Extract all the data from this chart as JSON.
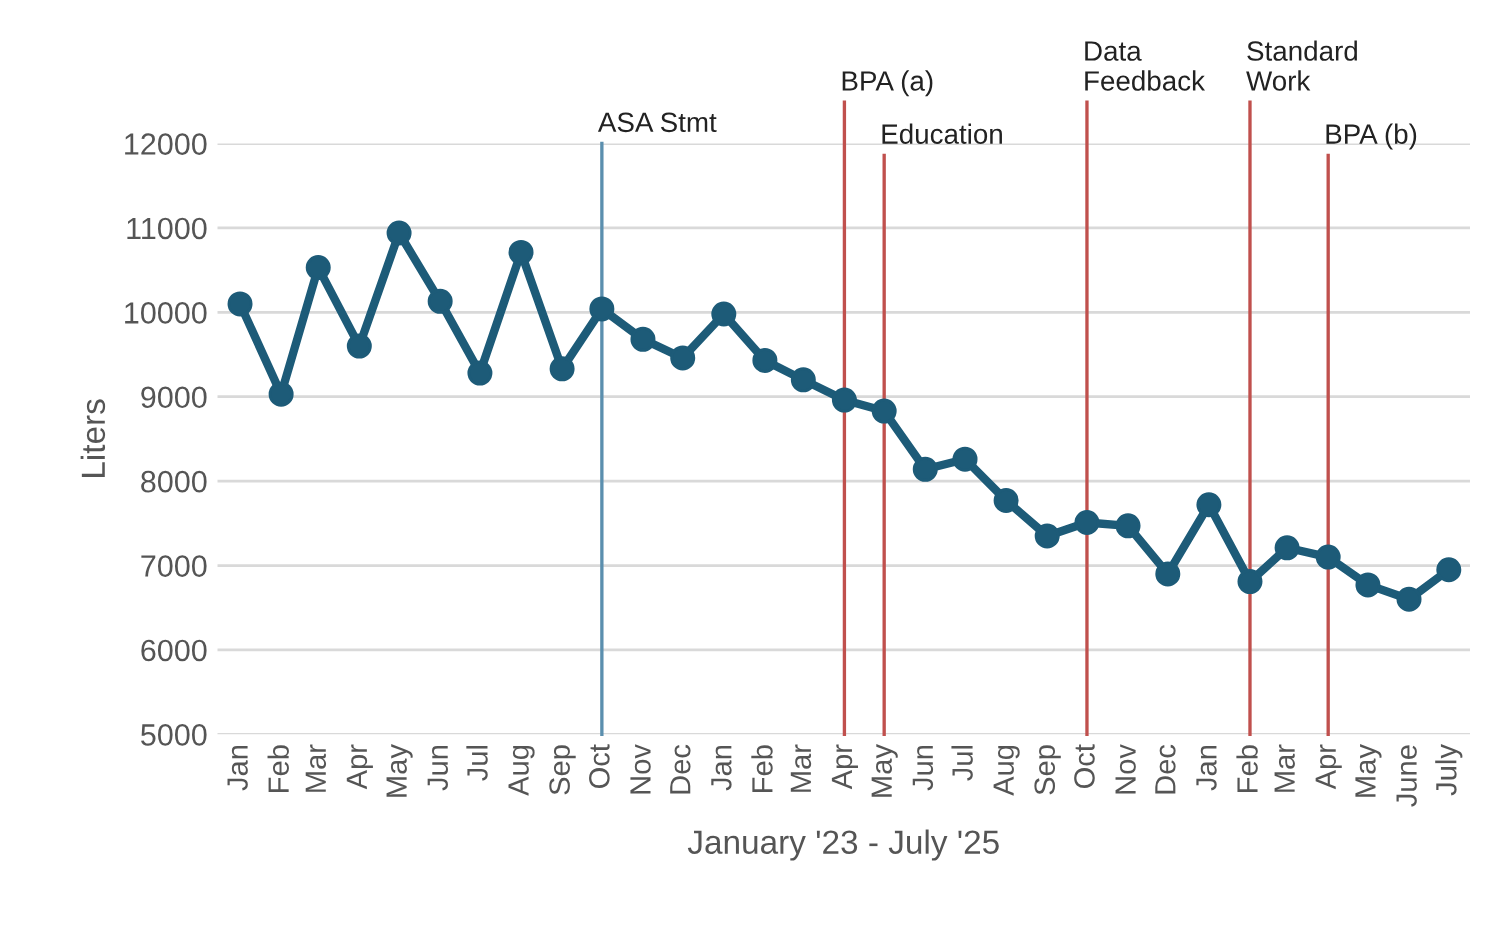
{
  "chart_data": {
    "type": "line",
    "xlabel": "January '23 - July '25",
    "ylabel": "Liters",
    "x": [
      "2023-01",
      "2023-02",
      "2023-03",
      "2023-04",
      "2023-05",
      "2023-06",
      "2023-07",
      "2023-08",
      "2023-09",
      "2023-10",
      "2023-11",
      "2023-12",
      "2024-01",
      "2024-02",
      "2024-03",
      "2024-04",
      "2024-05",
      "2024-06",
      "2024-07",
      "2024-08",
      "2024-09",
      "2024-10",
      "2024-11",
      "2024-12",
      "2025-01",
      "2025-02",
      "2025-03",
      "2025-04",
      "2025-05",
      "2025-06",
      "2025-07"
    ],
    "xlim": [
      "2022-12-15",
      "2025-07-17"
    ],
    "xticks": [
      {
        "value": "2023-01",
        "label": "Jan"
      },
      {
        "value": "2023-02",
        "label": "Feb"
      },
      {
        "value": "2023-03",
        "label": "Mar"
      },
      {
        "value": "2023-04",
        "label": "Apr"
      },
      {
        "value": "2023-05",
        "label": "May"
      },
      {
        "value": "2023-06",
        "label": "Jun"
      },
      {
        "value": "2023-07",
        "label": "Jul"
      },
      {
        "value": "2023-08",
        "label": "Aug"
      },
      {
        "value": "2023-09",
        "label": "Sep"
      },
      {
        "value": "2023-10",
        "label": "Oct"
      },
      {
        "value": "2023-11",
        "label": "Nov"
      },
      {
        "value": "2023-12",
        "label": "Dec"
      },
      {
        "value": "2024-01",
        "label": "Jan"
      },
      {
        "value": "2024-02",
        "label": "Feb"
      },
      {
        "value": "2024-03",
        "label": "Mar"
      },
      {
        "value": "2024-04",
        "label": "Apr"
      },
      {
        "value": "2024-05",
        "label": "May"
      },
      {
        "value": "2024-06",
        "label": "Jun"
      },
      {
        "value": "2024-07",
        "label": "Jul"
      },
      {
        "value": "2024-08",
        "label": "Aug"
      },
      {
        "value": "2024-09",
        "label": "Sep"
      },
      {
        "value": "2024-10",
        "label": "Oct"
      },
      {
        "value": "2024-11",
        "label": "Nov"
      },
      {
        "value": "2024-12",
        "label": "Dec"
      },
      {
        "value": "2025-01",
        "label": "Jan"
      },
      {
        "value": "2025-02",
        "label": "Feb"
      },
      {
        "value": "2025-03",
        "label": "Mar"
      },
      {
        "value": "2025-04",
        "label": "Apr"
      },
      {
        "value": "2025-05",
        "label": "May"
      },
      {
        "value": "2025-06",
        "label": "June"
      },
      {
        "value": "2025-07",
        "label": "July"
      }
    ],
    "series": [
      {
        "color": "#1d5b78",
        "values": [
          10100,
          9030,
          10530,
          9600,
          10940,
          10130,
          9280,
          10710,
          9330,
          10040,
          9680,
          9460,
          9980,
          9430,
          9200,
          8960,
          8830,
          8140,
          8260,
          7770,
          7350,
          7510,
          7470,
          6900,
          7720,
          6810,
          7210,
          7100,
          6770,
          6600,
          6950
        ]
      }
    ],
    "ylim": [
      5000,
      12000
    ],
    "yticks": [
      5000,
      6000,
      7000,
      8000,
      9000,
      10000,
      11000,
      12000
    ],
    "grid": "y",
    "marker": "circle",
    "line_style": "solid",
    "ref_lines": [
      {
        "axis": "x",
        "value": "2023-10",
        "label": "ASA Stmt",
        "color": "#5b8fae"
      },
      {
        "axis": "x",
        "value": "2024-04",
        "label": "BPA (a)",
        "color": "#c0504d"
      },
      {
        "axis": "x",
        "value": "2024-05",
        "label": "Education",
        "color": "#c0504d"
      },
      {
        "axis": "x",
        "value": "2024-10",
        "label": "Data\nFeedback",
        "color": "#c0504d"
      },
      {
        "axis": "x",
        "value": "2025-02",
        "label": "Standard\nWork",
        "color": "#c0504d"
      },
      {
        "axis": "x",
        "value": "2025-04",
        "label": "BPA (b)",
        "color": "#c0504d"
      }
    ]
  }
}
